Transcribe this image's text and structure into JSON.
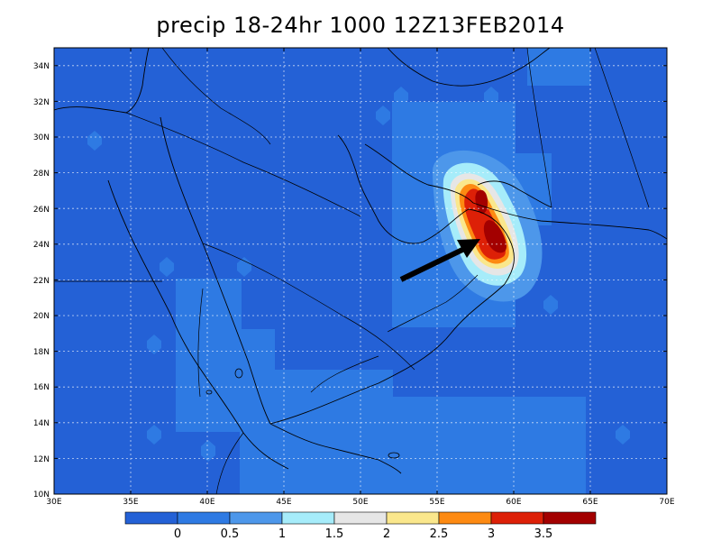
{
  "title": "precip 18-24hr 1000 12Z13FEB2014",
  "map": {
    "lon_range": [
      30,
      70
    ],
    "lat_range": [
      10,
      35
    ],
    "lon_ticks": [
      "30E",
      "35E",
      "40E",
      "45E",
      "50E",
      "55E",
      "60E",
      "65E",
      "70E"
    ],
    "lat_ticks": [
      "10N",
      "12N",
      "14N",
      "16N",
      "18N",
      "20N",
      "22N",
      "24N",
      "26N",
      "28N",
      "30N",
      "32N",
      "34N"
    ],
    "grid": true
  },
  "legend": {
    "labels": [
      "0",
      "0.5",
      "1",
      "1.5",
      "2",
      "2.5",
      "3",
      "3.5"
    ],
    "colors": [
      "#2461d6",
      "#2e7ae3",
      "#4d97ea",
      "#a6ecfa",
      "#e6e6e6",
      "#fae78c",
      "#fd8a12",
      "#dd2007",
      "#a30000"
    ]
  },
  "annotation": {
    "type": "arrow",
    "points_to": "precipitation maximum near 24N 58E"
  },
  "colors": {
    "base": "#2461d6",
    "low": "#4d97ea",
    "mid": "#a6ecfa",
    "high": "#fae78c",
    "orange": "#fd8a12",
    "red": "#dd2007",
    "dark_red": "#a30000"
  }
}
